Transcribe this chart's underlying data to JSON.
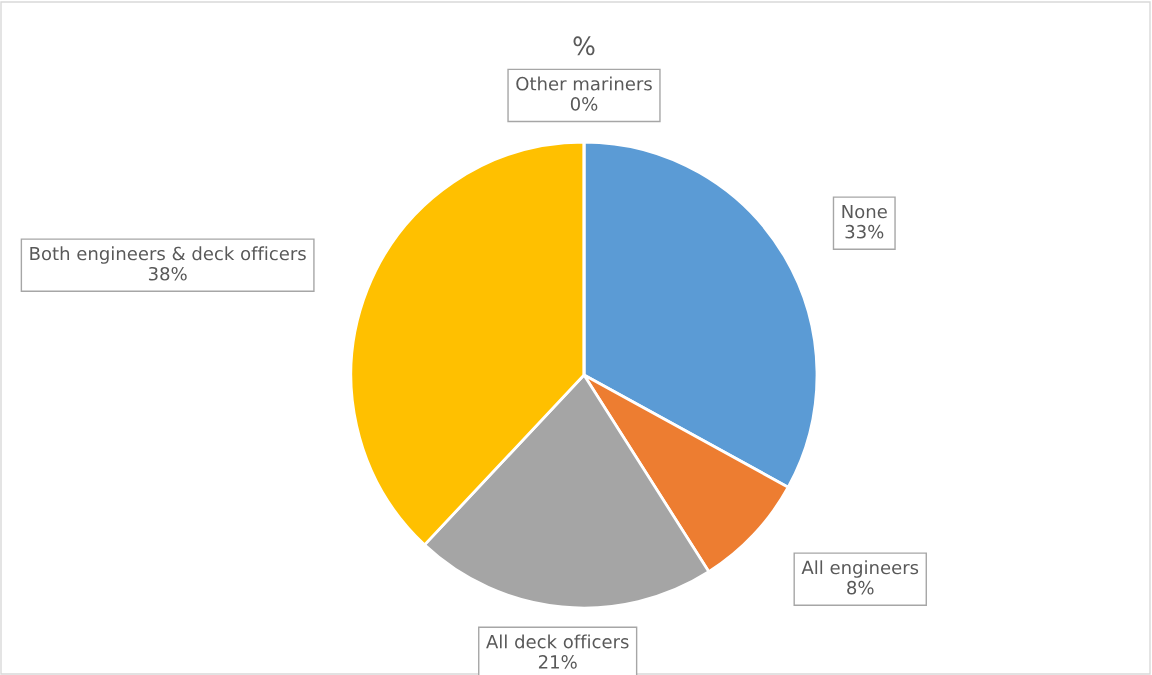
{
  "chart_data": {
    "type": "pie",
    "title": "%",
    "categories": [
      "None",
      "All engineers",
      "All deck officers",
      "Both engineers & deck officers",
      "Other mariners"
    ],
    "values": [
      33,
      8,
      21,
      38,
      0
    ],
    "value_labels": [
      "33%",
      "8%",
      "21%",
      "38%",
      "0%"
    ],
    "colors": [
      "#5b9bd5",
      "#ed7d31",
      "#a5a5a5",
      "#ffc000",
      "#4472c4"
    ],
    "legend": false
  }
}
